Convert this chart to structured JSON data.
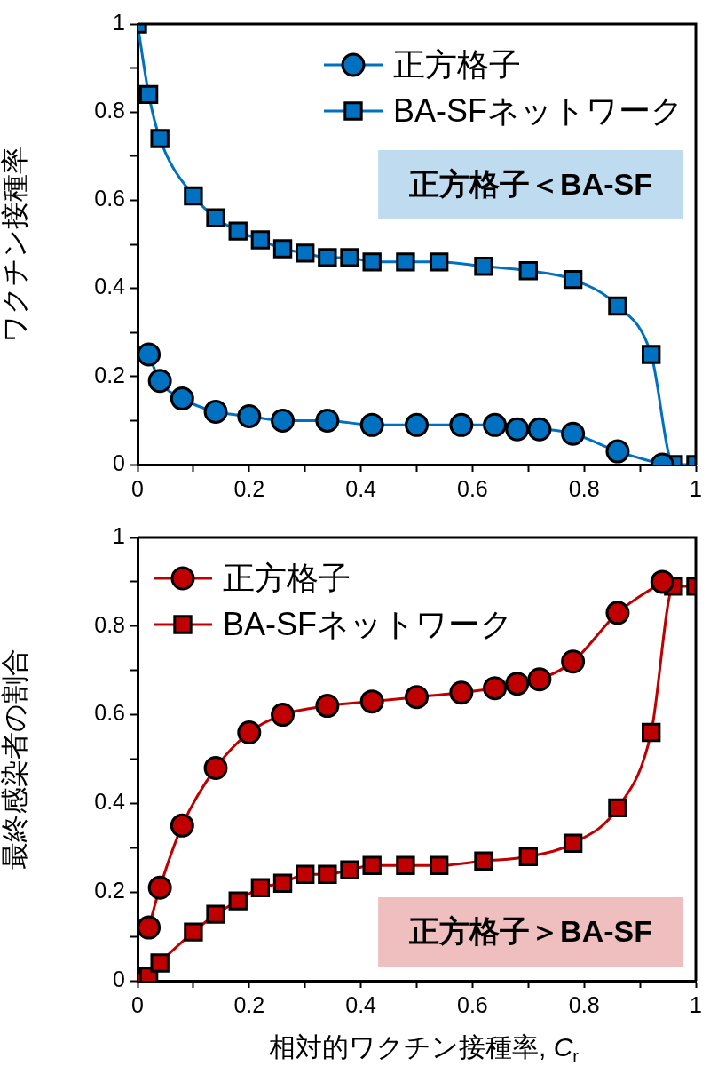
{
  "chart_data": [
    {
      "type": "line",
      "ylabel": "ワクチン接種率",
      "legend": "top right",
      "line_style": "solid",
      "annotations": [
        "正方格子＜BA-SF"
      ],
      "xlim": [
        0,
        1
      ],
      "xticks": [
        0,
        {
          "value": 0.1,
          "label": null
        },
        0.2,
        {
          "value": 0.3,
          "label": null
        },
        0.4,
        {
          "value": 0.5,
          "label": null
        },
        0.6,
        {
          "value": 0.7,
          "label": null
        },
        0.8,
        {
          "value": 0.9,
          "label": null
        },
        1
      ],
      "ylim": [
        0,
        1
      ],
      "yticks": [
        0,
        {
          "value": 0.1,
          "label": null
        },
        0.2,
        {
          "value": 0.3,
          "label": null
        },
        0.4,
        {
          "value": 0.5,
          "label": null
        },
        0.6,
        {
          "value": 0.7,
          "label": null
        },
        0.8,
        {
          "value": 0.9,
          "label": null
        },
        1
      ],
      "series": [
        {
          "name": "正方格子",
          "color": "#0070c0",
          "marker": "circle",
          "x": [
            0.02,
            0.04,
            0.08,
            0.14,
            0.2,
            0.26,
            0.34,
            0.42,
            0.5,
            0.58,
            0.64,
            0.68,
            0.72,
            0.78,
            0.86,
            0.94
          ],
          "values": [
            0.25,
            0.19,
            0.15,
            0.12,
            0.11,
            0.1,
            0.1,
            0.09,
            0.09,
            0.09,
            0.09,
            0.08,
            0.08,
            0.07,
            0.03,
            0
          ]
        },
        {
          "name": "BA-SFネットワーク",
          "color": "#0070c0",
          "marker": "square",
          "x": [
            0,
            0.02,
            0.04,
            0.1,
            0.14,
            0.18,
            0.22,
            0.26,
            0.3,
            0.34,
            0.38,
            0.42,
            0.48,
            0.54,
            0.62,
            0.7,
            0.78,
            0.86,
            0.92,
            0.96,
            1
          ],
          "values": [
            1,
            0.84,
            0.74,
            0.61,
            0.56,
            0.53,
            0.51,
            0.49,
            0.48,
            0.47,
            0.47,
            0.46,
            0.46,
            0.46,
            0.45,
            0.44,
            0.42,
            0.36,
            0.25,
            0,
            0
          ]
        }
      ]
    },
    {
      "type": "line",
      "ylabel": "最終感染者の割合",
      "xlabel": "相対的ワクチン接種率, C$_{r}$",
      "legend": "top left",
      "line_style": "solid",
      "annotations": [
        "正方格子＞BA-SF"
      ],
      "xlim": [
        0,
        1
      ],
      "xticks": [
        0,
        {
          "value": 0.1,
          "label": null
        },
        0.2,
        {
          "value": 0.3,
          "label": null
        },
        0.4,
        {
          "value": 0.5,
          "label": null
        },
        0.6,
        {
          "value": 0.7,
          "label": null
        },
        0.8,
        {
          "value": 0.9,
          "label": null
        },
        1
      ],
      "ylim": [
        0,
        1
      ],
      "yticks": [
        0,
        {
          "value": 0.1,
          "label": null
        },
        0.2,
        {
          "value": 0.3,
          "label": null
        },
        0.4,
        {
          "value": 0.5,
          "label": null
        },
        0.6,
        {
          "value": 0.7,
          "label": null
        },
        0.8,
        {
          "value": 0.9,
          "label": null
        },
        1
      ],
      "series": [
        {
          "name": "正方格子",
          "color": "#c00000",
          "marker": "circle",
          "x": [
            0.02,
            0.04,
            0.08,
            0.14,
            0.2,
            0.26,
            0.34,
            0.42,
            0.5,
            0.58,
            0.64,
            0.68,
            0.72,
            0.78,
            0.86,
            0.94
          ],
          "values": [
            0.12,
            0.21,
            0.35,
            0.48,
            0.56,
            0.6,
            0.62,
            0.63,
            0.64,
            0.65,
            0.66,
            0.67,
            0.68,
            0.72,
            0.83,
            0.9
          ]
        },
        {
          "name": "BA-SFネットワーク",
          "color": "#c00000",
          "marker": "square",
          "x": [
            0,
            0.02,
            0.04,
            0.1,
            0.14,
            0.18,
            0.22,
            0.26,
            0.3,
            0.34,
            0.38,
            0.42,
            0.48,
            0.54,
            0.62,
            0.7,
            0.78,
            0.86,
            0.92,
            0.96,
            1
          ],
          "values": [
            0,
            0.01,
            0.04,
            0.11,
            0.15,
            0.18,
            0.21,
            0.22,
            0.24,
            0.24,
            0.25,
            0.26,
            0.26,
            0.26,
            0.27,
            0.28,
            0.31,
            0.39,
            0.56,
            0.89,
            0.89
          ]
        }
      ]
    }
  ]
}
